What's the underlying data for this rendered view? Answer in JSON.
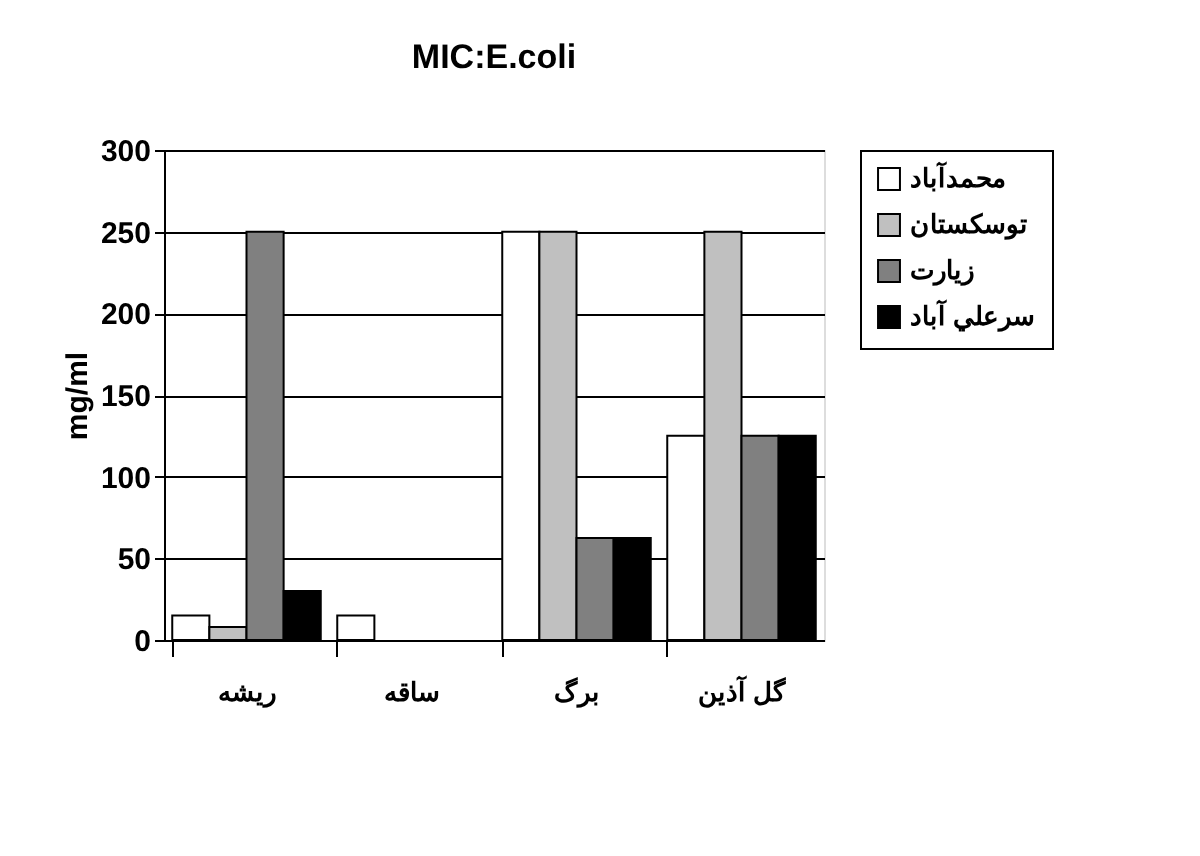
{
  "chart_data": {
    "type": "bar",
    "title": "MIC:E.coli",
    "ylabel": "mg/ml",
    "categories": [
      "ریشه",
      "ساقه",
      "برگ",
      "گل آذین"
    ],
    "series": [
      {
        "name": "محمدآباد",
        "color": "#ffffff",
        "values": [
          15,
          15,
          250,
          125
        ]
      },
      {
        "name": "توسکستان",
        "color": "#c0c0c0",
        "values": [
          8,
          null,
          250,
          250
        ]
      },
      {
        "name": "زيارت",
        "color": "#808080",
        "values": [
          250,
          null,
          62.5,
          125
        ]
      },
      {
        "name": "سرعلي آباد",
        "color": "#000000",
        "values": [
          30,
          null,
          62.5,
          125
        ]
      }
    ],
    "ylim": [
      0,
      300
    ],
    "yticks": [
      0,
      50,
      100,
      150,
      200,
      250,
      300
    ],
    "grid": "y",
    "legend": "right"
  }
}
